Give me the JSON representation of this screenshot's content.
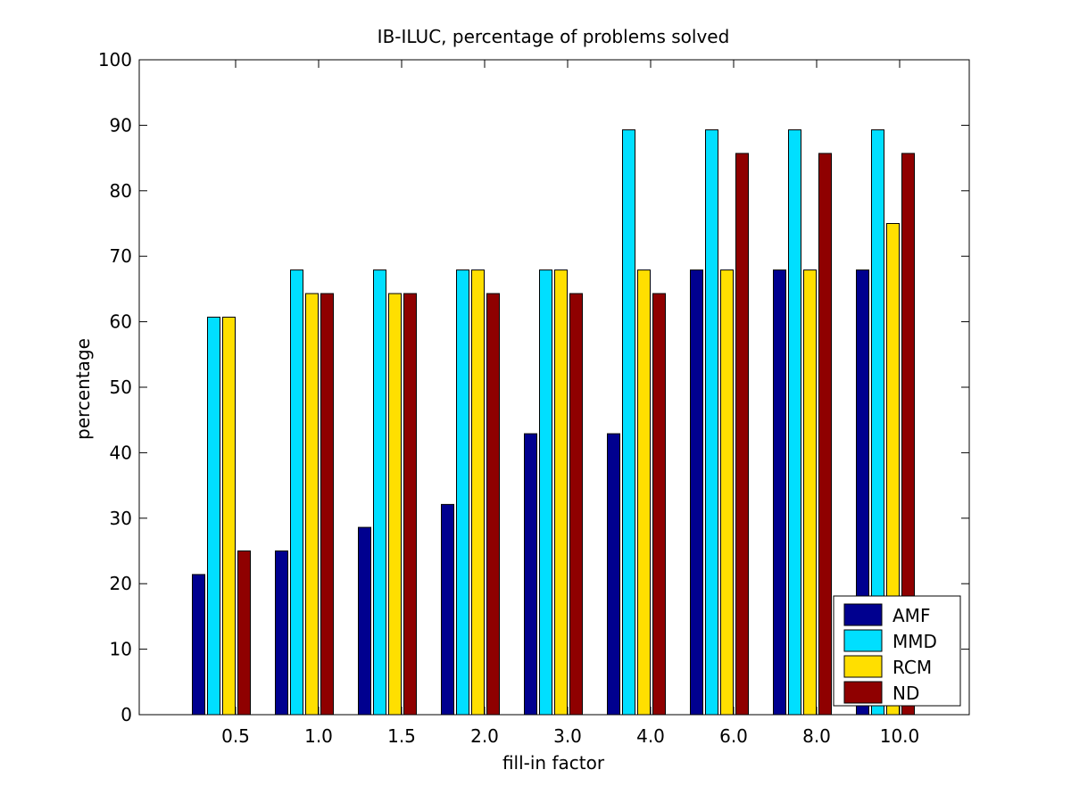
{
  "chart_data": {
    "type": "bar",
    "title": "IB-ILUC, percentage of problems solved",
    "xlabel": "fill-in factor",
    "ylabel": "percentage",
    "ylim": [
      0,
      100
    ],
    "yticks": [
      0,
      10,
      20,
      30,
      40,
      50,
      60,
      70,
      80,
      90,
      100
    ],
    "categories": [
      "0.5",
      "1.0",
      "1.5",
      "2.0",
      "3.0",
      "4.0",
      "6.0",
      "8.0",
      "10.0"
    ],
    "grid": false,
    "legend_position": "bottom-right",
    "series": [
      {
        "name": "AMF",
        "color": "#00008F",
        "values": [
          21.4,
          25.0,
          28.6,
          32.1,
          42.9,
          42.9,
          67.9,
          67.9,
          67.9
        ]
      },
      {
        "name": "MMD",
        "color": "#00DFFF",
        "values": [
          60.7,
          67.9,
          67.9,
          67.9,
          67.9,
          89.3,
          89.3,
          89.3,
          89.3
        ]
      },
      {
        "name": "RCM",
        "color": "#FFDF00",
        "values": [
          60.7,
          64.3,
          64.3,
          67.9,
          67.9,
          67.9,
          67.9,
          67.9,
          75.0
        ]
      },
      {
        "name": "ND",
        "color": "#8F0000",
        "values": [
          25.0,
          64.3,
          64.3,
          64.3,
          64.3,
          64.3,
          85.7,
          85.7,
          85.7
        ]
      }
    ]
  }
}
